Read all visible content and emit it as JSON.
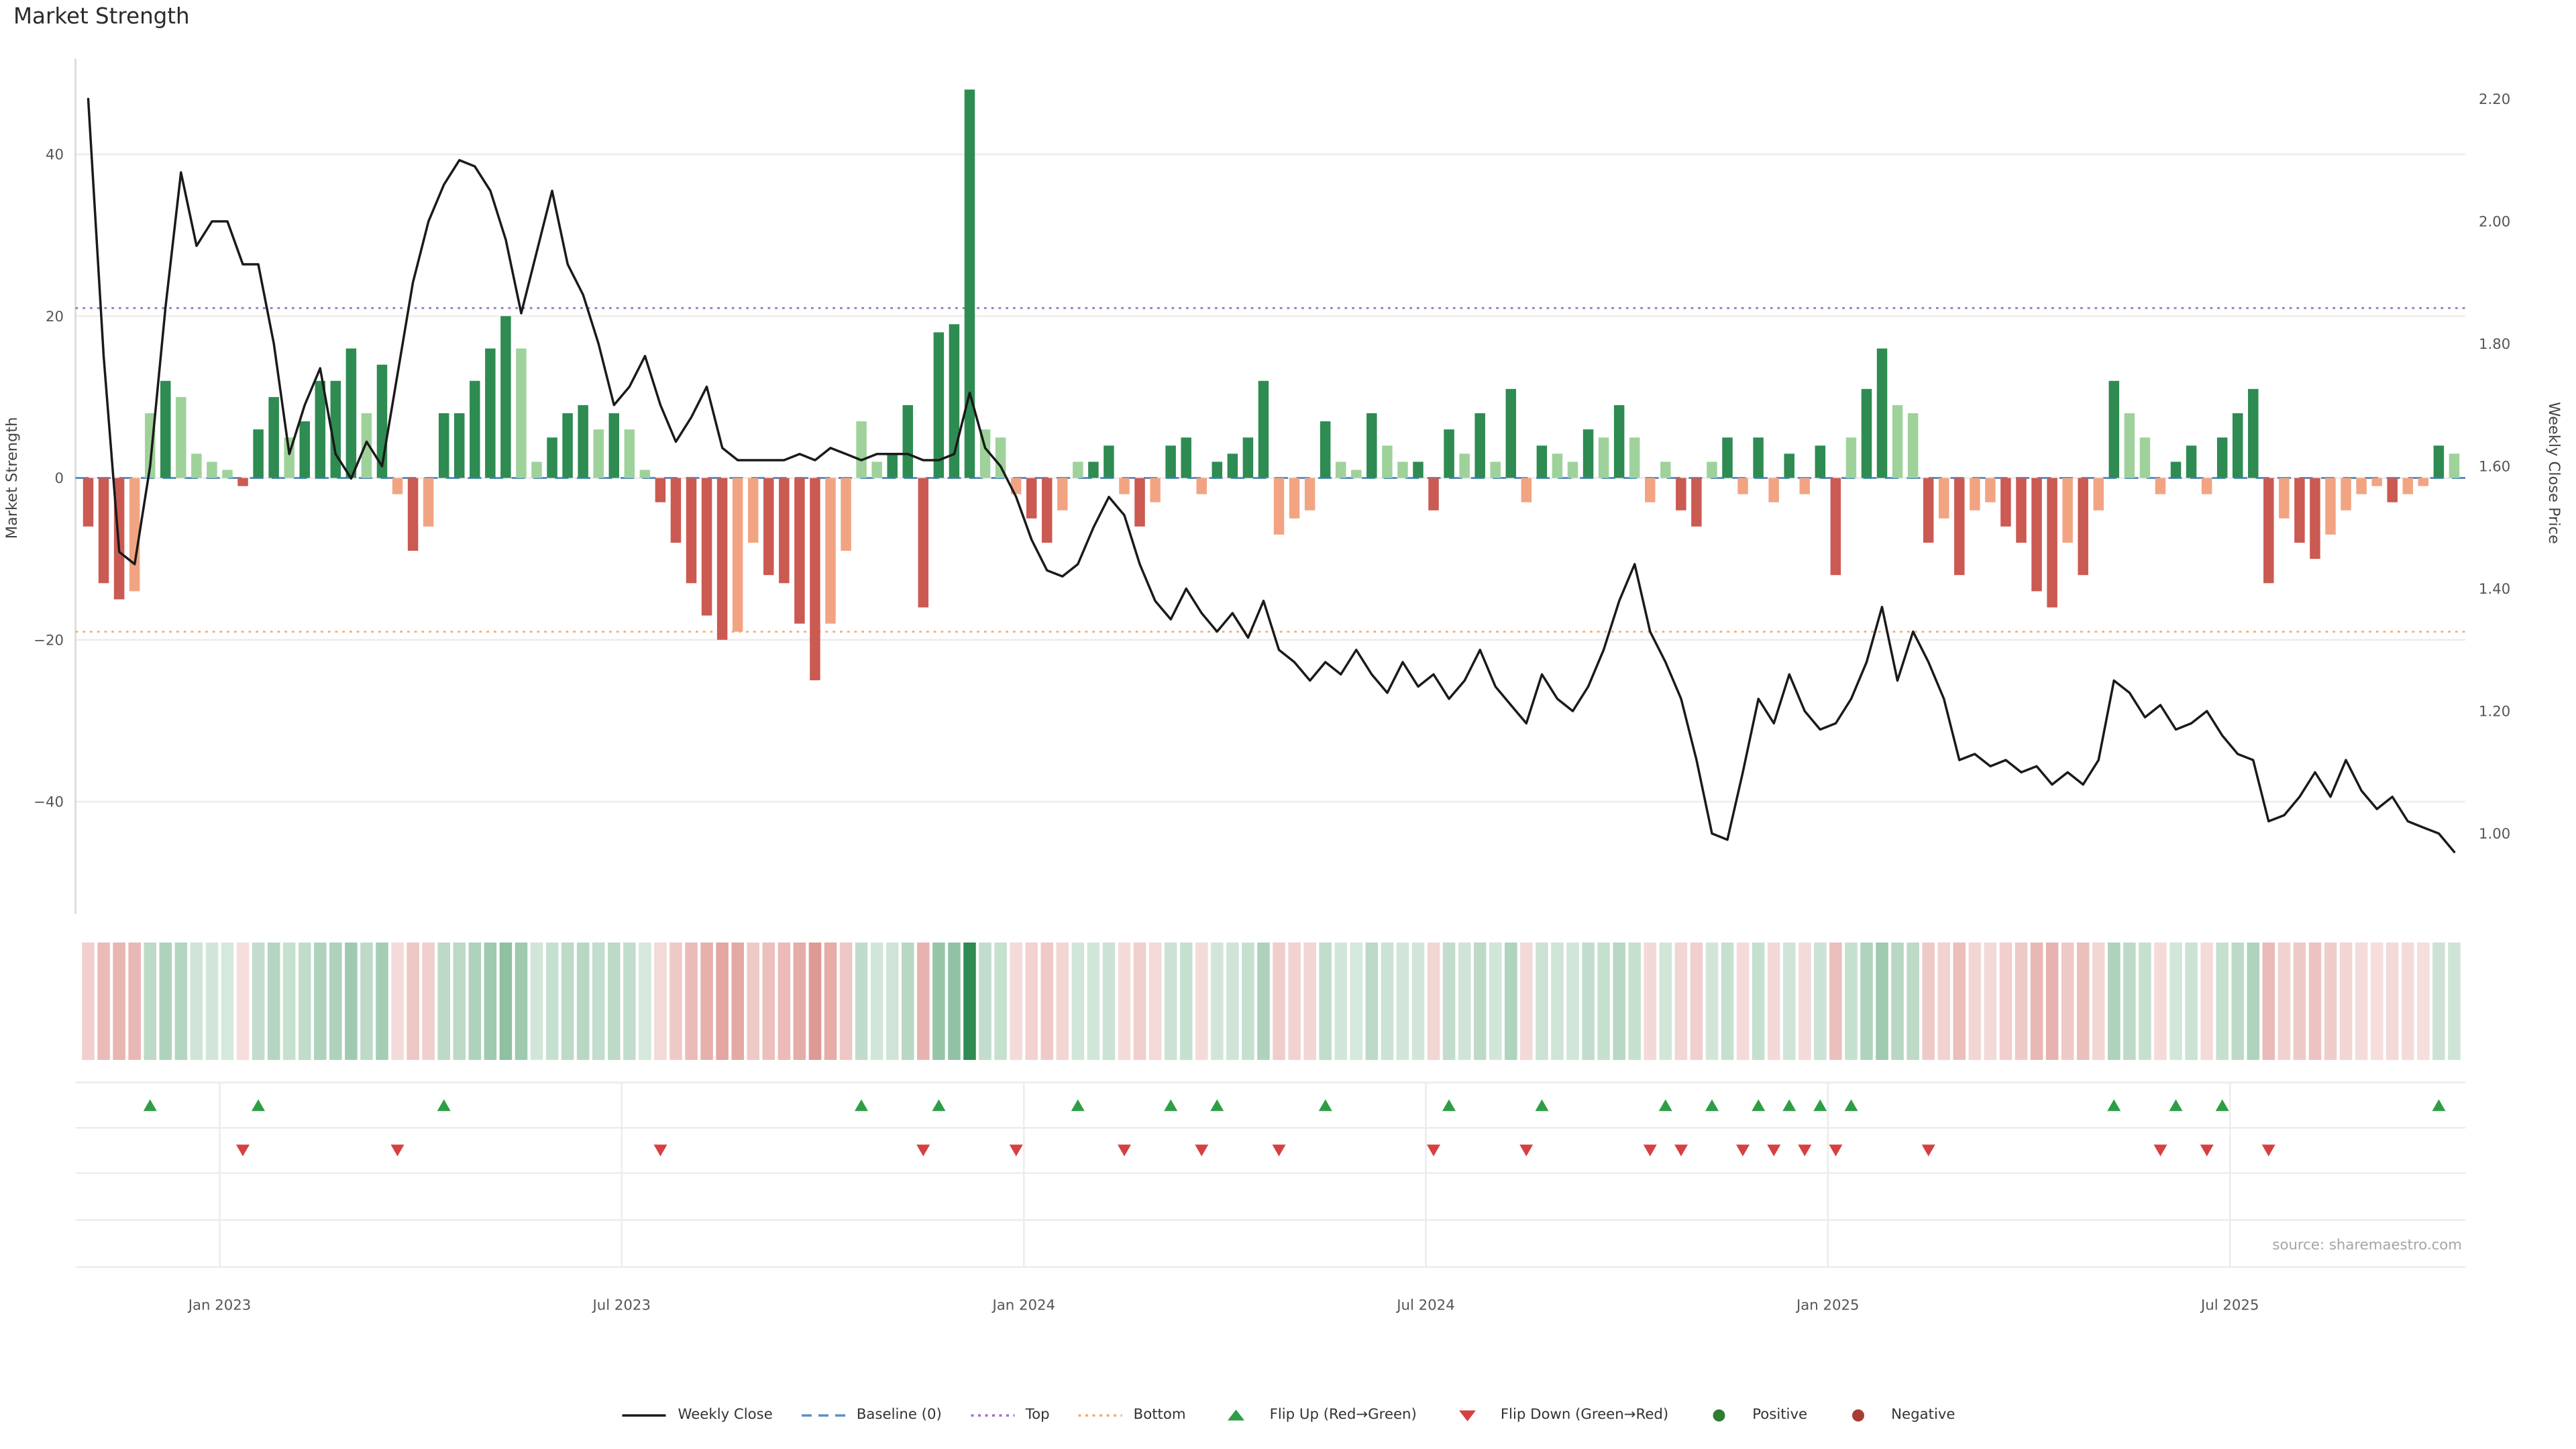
{
  "title": "Market Strength",
  "source": "source: sharemaestro.com",
  "axes": {
    "left_label": "Market Strength",
    "right_label": "Weekly Close Price",
    "left_ticks": [
      "40",
      "20",
      "0",
      "−20",
      "−40"
    ],
    "right_ticks": [
      "2.20",
      "2.00",
      "1.80",
      "1.60",
      "1.40",
      "1.20",
      "1.00"
    ],
    "x_ticks": [
      "Jan 2023",
      "Jul 2023",
      "Jan 2024",
      "Jul 2024",
      "Jan 2025",
      "Jul 2025"
    ]
  },
  "palette": {
    "positive_dark": "#2e8b52",
    "positive_light": "#9ed29a",
    "negative_dark": "#cb5a52",
    "negative_light": "#f2a482",
    "price_line": "#1a1a1a",
    "baseline": "#5b8fbf",
    "top_line": "#9d6fc3",
    "bottom_line": "#f2a96e",
    "flip_up": "#2e9e46",
    "flip_down": "#d64040",
    "positive_dot": "#2e7d32",
    "negative_dot": "#aa3b33"
  },
  "legend": [
    {
      "label": "Weekly Close",
      "type": "line",
      "color": "#1a1a1a"
    },
    {
      "label": "Baseline (0)",
      "type": "dashed",
      "color": "#5b8fbf"
    },
    {
      "label": "Top",
      "type": "dotted",
      "color": "#9d6fc3"
    },
    {
      "label": "Bottom",
      "type": "dotted",
      "color": "#f2a96e"
    },
    {
      "label": "Flip Up (Red→Green)",
      "type": "triangle-up",
      "color": "#2e9e46"
    },
    {
      "label": "Flip Down (Green→Red)",
      "type": "triangle-down",
      "color": "#d64040"
    },
    {
      "label": "Positive",
      "type": "dot",
      "color": "#2e7d32"
    },
    {
      "label": "Negative",
      "type": "dot",
      "color": "#aa3b33"
    }
  ],
  "chart_data": {
    "type": "combo-bar-line",
    "title": "Market Strength",
    "ylabel_left": "Market Strength",
    "ylabel_right": "Weekly Close Price",
    "left_ylim": [
      -52,
      50
    ],
    "right_ylim": [
      0.95,
      2.25
    ],
    "baseline": 0,
    "top_line": 21,
    "bottom_line": -19,
    "x_tick_labels": [
      "Jan 2023",
      "Jul 2023",
      "Jan 2024",
      "Jul 2024",
      "Jan 2025",
      "Jul 2025"
    ],
    "x_tick_positions": [
      9,
      35,
      61,
      87,
      113,
      139
    ],
    "strength": [
      -6,
      -13,
      -15,
      -14,
      8,
      12,
      10,
      3,
      2,
      1,
      -1,
      6,
      10,
      5,
      7,
      12,
      12,
      16,
      8,
      14,
      -2,
      -9,
      -6,
      8,
      8,
      12,
      16,
      20,
      16,
      2,
      5,
      8,
      9,
      6,
      8,
      6,
      1,
      -3,
      -8,
      -13,
      -17,
      -20,
      -19,
      -8,
      -12,
      -13,
      -18,
      -25,
      -18,
      -9,
      7,
      2,
      3,
      9,
      -16,
      18,
      19,
      48,
      6,
      5,
      -2,
      -5,
      -8,
      -4,
      2,
      2,
      4,
      -2,
      -6,
      -3,
      4,
      5,
      -2,
      2,
      3,
      5,
      12,
      -7,
      -5,
      -4,
      7,
      2,
      1,
      8,
      4,
      2,
      2,
      -4,
      6,
      3,
      8,
      2,
      11,
      -3,
      4,
      3,
      2,
      6,
      5,
      9,
      5,
      -3,
      2,
      -4,
      -6,
      2,
      5,
      -2,
      5,
      -3,
      3,
      -2,
      4,
      -12,
      5,
      11,
      16,
      9,
      8,
      -8,
      -5,
      -12,
      -4,
      -3,
      -6,
      -8,
      -14,
      -16,
      -8,
      -12,
      -4,
      12,
      8,
      5,
      -2,
      2,
      4,
      -2,
      5,
      8,
      11,
      -13,
      -5,
      -8,
      -10,
      -7,
      -4,
      -2,
      -1,
      -3,
      -2,
      -1,
      4,
      3
    ],
    "close": [
      2.2,
      1.78,
      1.46,
      1.44,
      1.6,
      1.86,
      2.08,
      1.96,
      2.0,
      2.0,
      1.93,
      1.93,
      1.8,
      1.62,
      1.7,
      1.76,
      1.62,
      1.58,
      1.64,
      1.6,
      1.75,
      1.9,
      2.0,
      2.06,
      2.1,
      2.09,
      2.05,
      1.97,
      1.85,
      1.95,
      2.05,
      1.93,
      1.88,
      1.8,
      1.7,
      1.73,
      1.78,
      1.7,
      1.64,
      1.68,
      1.73,
      1.63,
      1.61,
      1.61,
      1.61,
      1.61,
      1.62,
      1.61,
      1.63,
      1.62,
      1.61,
      1.62,
      1.62,
      1.62,
      1.61,
      1.61,
      1.62,
      1.72,
      1.63,
      1.6,
      1.55,
      1.48,
      1.43,
      1.42,
      1.44,
      1.5,
      1.55,
      1.52,
      1.44,
      1.38,
      1.35,
      1.4,
      1.36,
      1.33,
      1.36,
      1.32,
      1.38,
      1.3,
      1.28,
      1.25,
      1.28,
      1.26,
      1.3,
      1.26,
      1.23,
      1.28,
      1.24,
      1.26,
      1.22,
      1.25,
      1.3,
      1.24,
      1.21,
      1.18,
      1.26,
      1.22,
      1.2,
      1.24,
      1.3,
      1.38,
      1.44,
      1.33,
      1.28,
      1.22,
      1.12,
      1.0,
      0.99,
      1.1,
      1.22,
      1.18,
      1.26,
      1.2,
      1.17,
      1.18,
      1.22,
      1.28,
      1.37,
      1.25,
      1.33,
      1.28,
      1.22,
      1.12,
      1.13,
      1.11,
      1.12,
      1.1,
      1.11,
      1.08,
      1.1,
      1.08,
      1.12,
      1.25,
      1.23,
      1.19,
      1.21,
      1.17,
      1.18,
      1.2,
      1.16,
      1.13,
      1.12,
      1.02,
      1.03,
      1.06,
      1.1,
      1.06,
      1.12,
      1.07,
      1.04,
      1.06,
      1.02,
      1.01,
      1.0,
      0.97
    ]
  }
}
